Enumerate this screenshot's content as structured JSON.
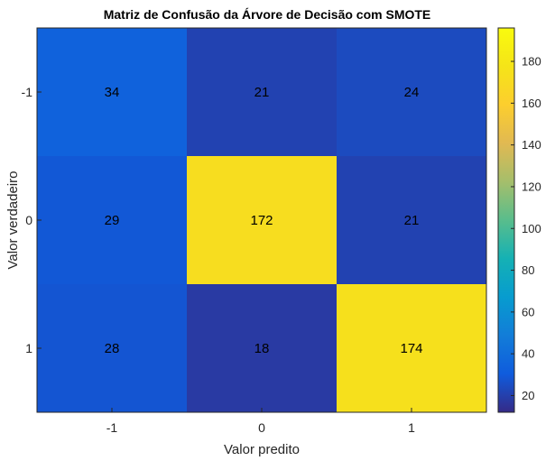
{
  "chart_data": {
    "type": "heatmap",
    "title": "Matriz de Confusão da Árvore de Decisão com SMOTE",
    "xlabel": "Valor predito",
    "ylabel": "Valor verdadeiro",
    "x_categories": [
      "-1",
      "0",
      "1"
    ],
    "y_categories": [
      "-1",
      "0",
      "1"
    ],
    "values": [
      [
        34,
        21,
        24
      ],
      [
        29,
        172,
        21
      ],
      [
        28,
        18,
        174
      ]
    ],
    "colorbar": {
      "min": 12,
      "max": 196,
      "ticks": [
        20,
        40,
        60,
        80,
        100,
        120,
        140,
        160,
        180
      ],
      "colormap": "parula"
    }
  }
}
